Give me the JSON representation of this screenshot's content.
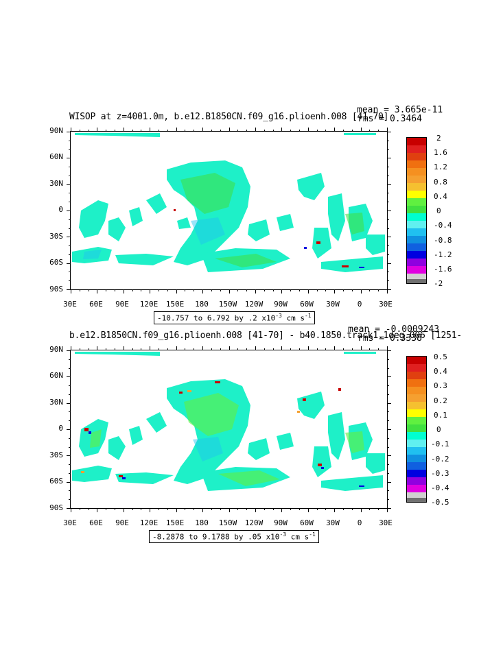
{
  "panels": [
    {
      "title": "WISOP at z=4001.0m, b.e12.B1850CN.f09_g16.plioenh.008 [41-70]",
      "mean": "mean = 3.665e-11",
      "rms": "rms = 0.3464",
      "range_main": "-10.757 to 6.792 by .2 x10",
      "range_exp": "-3",
      "range_units": " cm s",
      "range_units_exp": "-1",
      "lat_labels": [
        "90N",
        "60N",
        "30N",
        "0",
        "30S",
        "60S",
        "90S"
      ],
      "lon_labels": [
        "30E",
        "60E",
        "90E",
        "120E",
        "150E",
        "180",
        "150W",
        "120W",
        "90W",
        "60W",
        "30W",
        "0",
        "30E"
      ],
      "colorbar_labels": [
        "2",
        "1.6",
        "1.2",
        "0.8",
        "0.4",
        "0",
        "-0.4",
        "-0.8",
        "-1.2",
        "-1.6",
        "-2"
      ]
    },
    {
      "title": "b.e12.B1850CN.f09_g16.plioenh.008 [41-70] - b40.1850.track1.1deg.006 [1251-",
      "mean": "mean = -0.0009243",
      "rms": "rms = 0.3338",
      "range_main": "-8.2878 to 9.1788 by .05 x10",
      "range_exp": "-3",
      "range_units": " cm s",
      "range_units_exp": "-1",
      "lat_labels": [
        "90N",
        "60N",
        "30N",
        "0",
        "30S",
        "60S",
        "90S"
      ],
      "lon_labels": [
        "30E",
        "60E",
        "90E",
        "120E",
        "150E",
        "180",
        "150W",
        "120W",
        "90W",
        "60W",
        "30W",
        "0",
        "30E"
      ],
      "colorbar_labels": [
        "0.5",
        "0.4",
        "0.3",
        "0.2",
        "0.1",
        "0",
        "-0.1",
        "-0.2",
        "-0.3",
        "-0.4",
        "-0.5"
      ]
    }
  ],
  "colorbar_colors": [
    "#c80000",
    "#e02020",
    "#f07010",
    "#f5a030",
    "#f5c030",
    "#ffff00",
    "#40e040",
    "#30c060",
    "#00ffd0",
    "#60f0f0",
    "#20c0f0",
    "#1090e0",
    "#0000e0",
    "#9000e0",
    "#e000e0",
    "#d0d0d0",
    "#707070"
  ],
  "chart_data": [
    {
      "type": "heatmap",
      "title": "WISOP at z=4001.0m, b.e12.B1850CN.f09_g16.plioenh.008 [41-70]",
      "xlim": [
        "30E",
        "30E"
      ],
      "ylim": [
        "90S",
        "90N"
      ],
      "colorbar": [
        -2,
        2
      ],
      "step": 0.2,
      "stats": {
        "mean": 3.665e-11,
        "rms": 0.3464
      },
      "range": [
        -10.757,
        6.792
      ]
    },
    {
      "type": "heatmap",
      "title": "b.e12.B1850CN.f09_g16.plioenh.008 [41-70] - b40.1850.track1.1deg.006 [1251-",
      "xlim": [
        "30E",
        "30E"
      ],
      "ylim": [
        "90S",
        "90N"
      ],
      "colorbar": [
        -0.5,
        0.5
      ],
      "step": 0.05,
      "stats": {
        "mean": -0.0009243,
        "rms": 0.3338
      },
      "range": [
        -8.2878,
        9.1788
      ]
    }
  ]
}
